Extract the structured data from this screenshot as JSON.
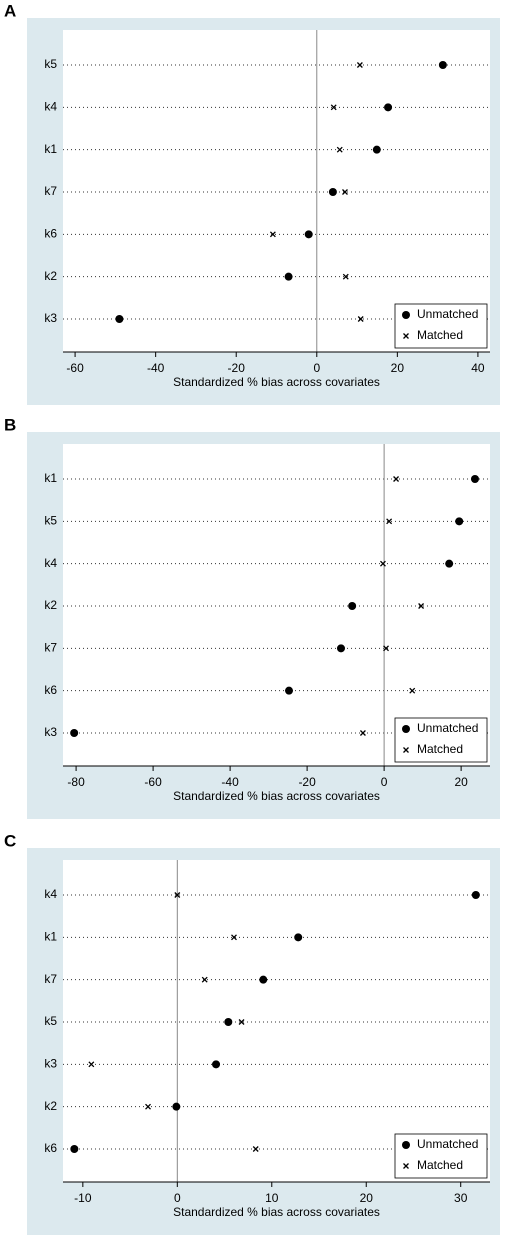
{
  "chart_data": [
    {
      "type": "dot",
      "panel": "A",
      "xlabel": "Standardized % bias across covariates",
      "categories": [
        "k5",
        "k4",
        "k1",
        "k7",
        "k6",
        "k2",
        "k3"
      ],
      "series": [
        {
          "name": "Unmatched",
          "marker": "circle",
          "color": "#000000",
          "values": [
            31.3,
            17.7,
            14.9,
            4.0,
            -2.0,
            -7.0,
            -49.0
          ]
        },
        {
          "name": "Matched",
          "marker": "x",
          "color": "#000000",
          "values": [
            10.7,
            4.2,
            5.7,
            7.0,
            -10.9,
            7.2,
            10.9
          ]
        }
      ],
      "xlim": [
        -63,
        43
      ],
      "xticks": [
        -60,
        -40,
        -20,
        0,
        20,
        40
      ],
      "legend": "lower right"
    },
    {
      "type": "dot",
      "panel": "B",
      "xlabel": "Standardized % bias across covariates",
      "categories": [
        "k1",
        "k5",
        "k4",
        "k2",
        "k7",
        "k6",
        "k3"
      ],
      "series": [
        {
          "name": "Unmatched",
          "marker": "circle",
          "color": "#000000",
          "values": [
            23.6,
            19.5,
            16.9,
            -8.3,
            -11.2,
            -24.7,
            -80.5
          ]
        },
        {
          "name": "Matched",
          "marker": "x",
          "color": "#000000",
          "values": [
            3.1,
            1.3,
            -0.3,
            9.6,
            0.5,
            7.3,
            -5.5
          ]
        }
      ],
      "xlim": [
        -83.4,
        27.5
      ],
      "xticks": [
        -80,
        -60,
        -40,
        -20,
        0,
        20
      ],
      "legend": "lower right"
    },
    {
      "type": "dot",
      "panel": "C",
      "xlabel": "Standardized % bias across covariates",
      "categories": [
        "k4",
        "k1",
        "k7",
        "k5",
        "k3",
        "k2",
        "k6"
      ],
      "series": [
        {
          "name": "Unmatched",
          "marker": "circle",
          "color": "#000000",
          "values": [
            31.6,
            12.8,
            9.1,
            5.4,
            4.1,
            -0.1,
            -10.9
          ]
        },
        {
          "name": "Matched",
          "marker": "x",
          "color": "#000000",
          "values": [
            0,
            6.0,
            2.9,
            6.8,
            -9.1,
            -3.1,
            8.3
          ]
        }
      ],
      "xlim": [
        -12.1,
        33.1
      ],
      "xticks": [
        -10,
        0,
        10,
        20,
        30
      ],
      "legend": "lower right"
    }
  ]
}
